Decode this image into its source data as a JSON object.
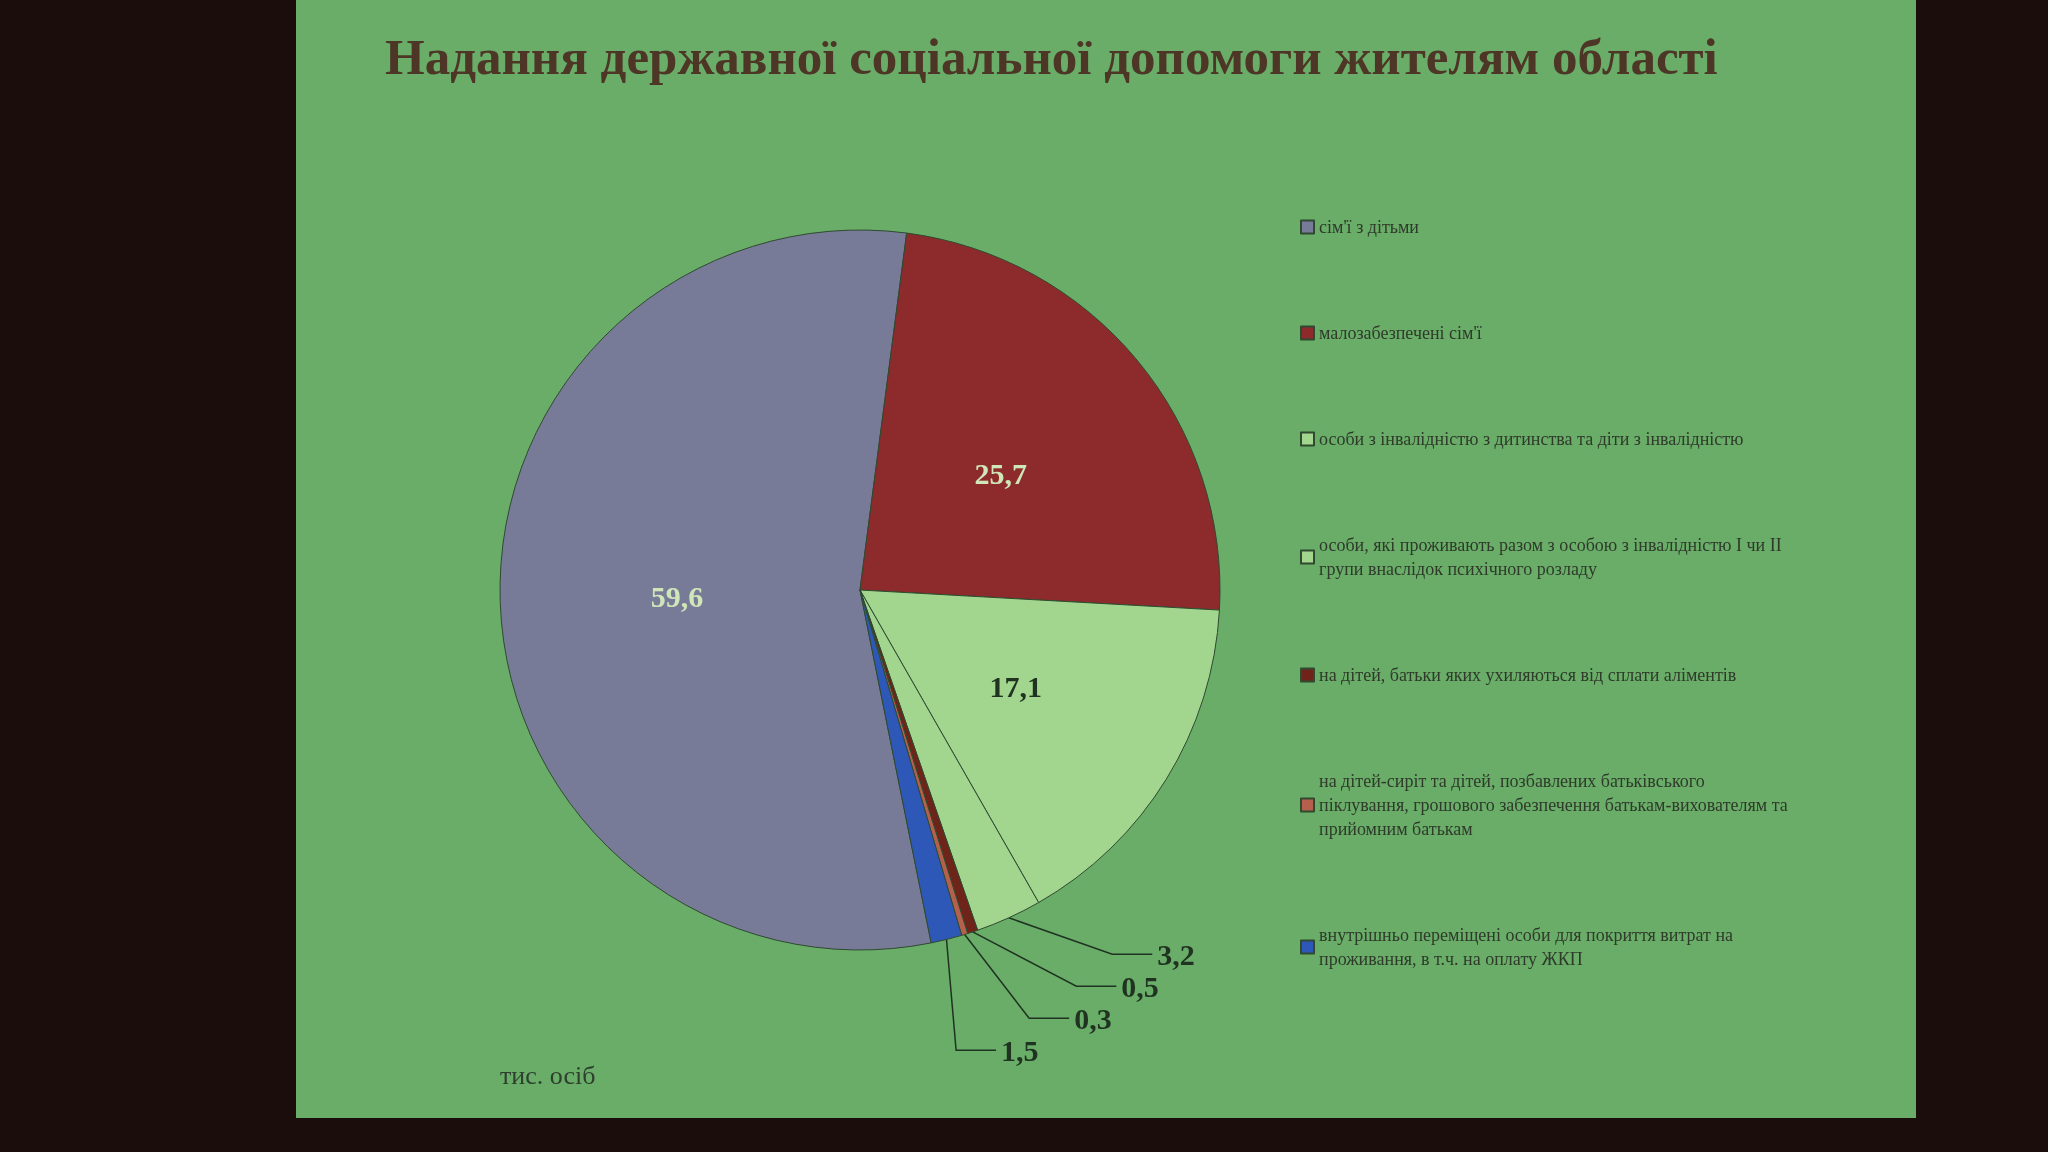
{
  "chart_data": {
    "type": "pie",
    "title": "Надання державної соціальної допомоги жителям області",
    "categories": [
      "сім'ї з дітьми",
      "малозабезпечені сім'ї",
      "особи з інвалідністю з дитинства та діти з інвалідністю",
      "особи, які проживають разом з особою з інвалідністю I чи II групи внаслідок психічного розладу",
      "на дітей, батьки яких ухиляються від сплати аліментів",
      "на дітей-сиріт та дітей, позбавлених батьківського піклування, грошового забезпечення батькам-вихователям та прийомним батькам",
      "внутрішньо переміщені особи для покриття витрат на проживання, в т.ч. на оплату ЖКП"
    ],
    "values": [
      59.6,
      25.7,
      17.1,
      3.2,
      0.5,
      0.3,
      1.5
    ],
    "colors": [
      "#787b97",
      "#8c2a2c",
      "#a2d68e",
      "#a2d68e",
      "#6e2418",
      "#b5604d",
      "#2e58b8"
    ],
    "value_labels": [
      "59,6",
      "25,7",
      "17,1",
      "3,2",
      "0,5",
      "0,3",
      "1,5"
    ],
    "legend": "right",
    "annotations": [
      "тис. осіб"
    ]
  }
}
